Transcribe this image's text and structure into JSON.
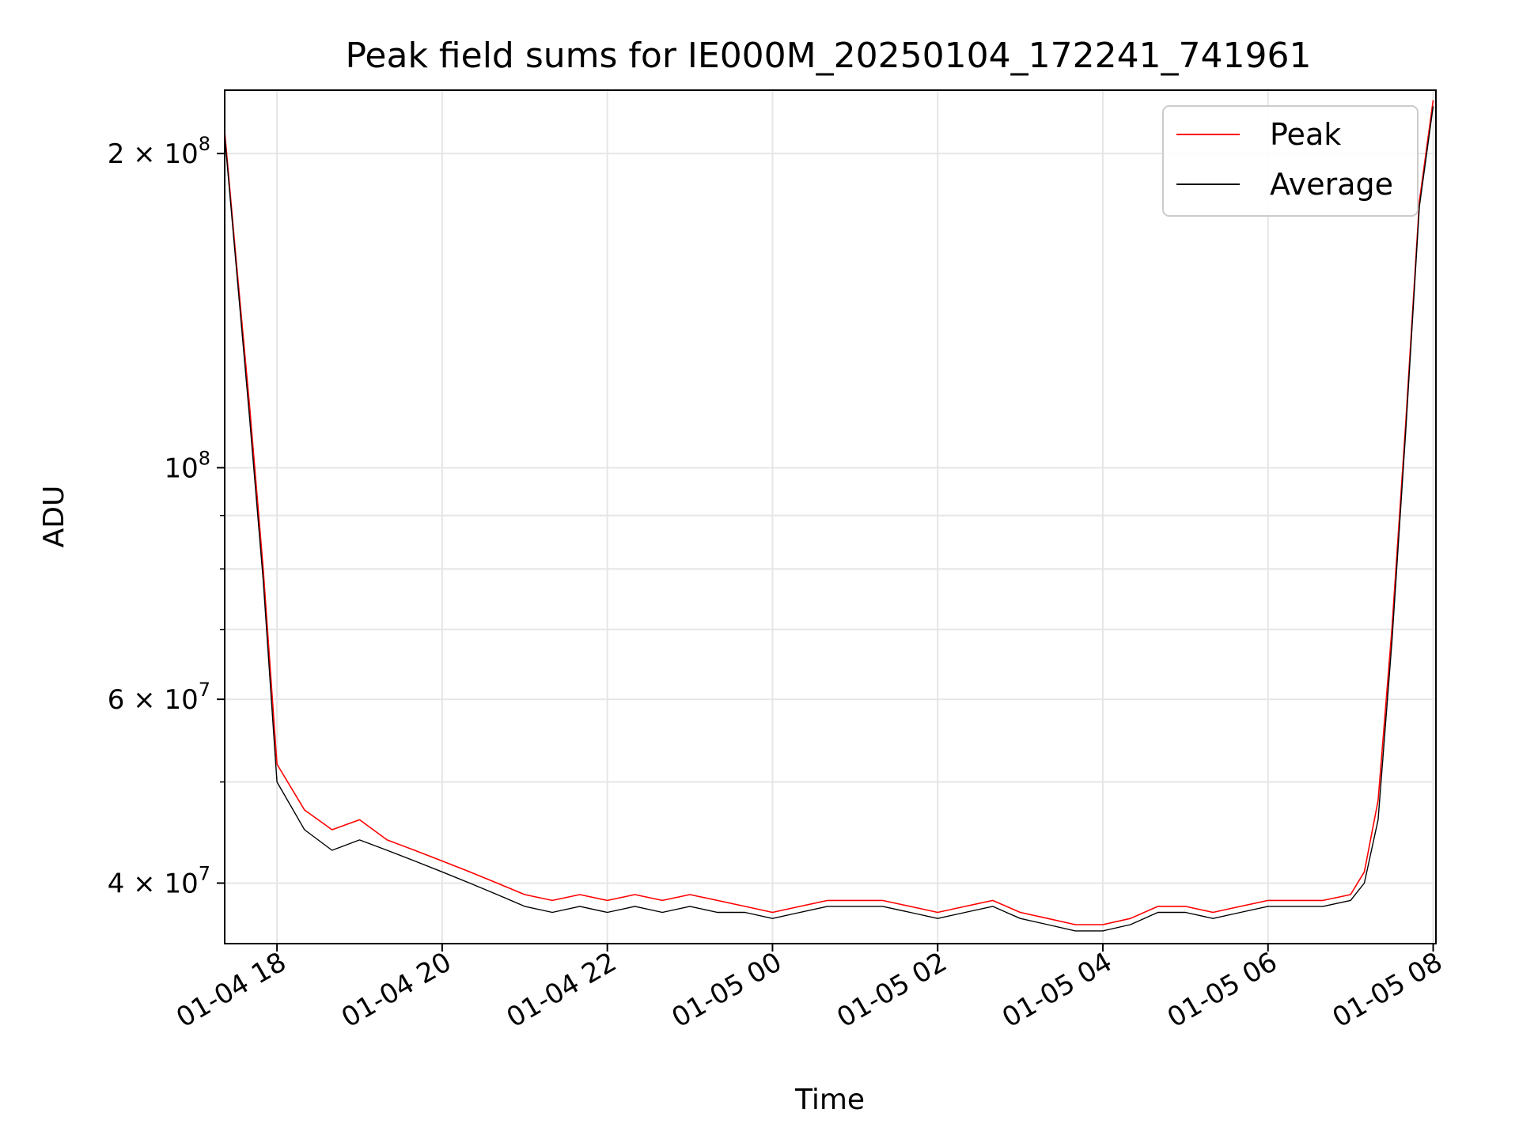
{
  "chart_data": {
    "type": "line",
    "title": "Peak field sums for IE000M_20250104_172241_741961",
    "xlabel": "Time",
    "ylabel": "ADU",
    "y_scale": "log",
    "ylim": [
      35000000,
      230000000
    ],
    "xlim": [
      "2025-01-04 17:22",
      "2025-01-05 08:02"
    ],
    "grid": true,
    "legend_position": "top-right",
    "x_ticks": [
      {
        "x": "2025-01-04 18:00",
        "label": "01-04 18"
      },
      {
        "x": "2025-01-04 20:00",
        "label": "01-04 20"
      },
      {
        "x": "2025-01-04 22:00",
        "label": "01-04 22"
      },
      {
        "x": "2025-01-05 00:00",
        "label": "01-05 00"
      },
      {
        "x": "2025-01-05 02:00",
        "label": "01-05 02"
      },
      {
        "x": "2025-01-05 04:00",
        "label": "01-05 04"
      },
      {
        "x": "2025-01-05 06:00",
        "label": "01-05 06"
      },
      {
        "x": "2025-01-05 08:00",
        "label": "01-05 08"
      }
    ],
    "y_ticks_major": [
      {
        "y": 40000000,
        "base": "4 × 10",
        "exp": "7"
      },
      {
        "y": 60000000,
        "base": "6 × 10",
        "exp": "7"
      },
      {
        "y": 100000000,
        "base": "10",
        "exp": "8"
      },
      {
        "y": 200000000,
        "base": "2 × 10",
        "exp": "8"
      }
    ],
    "y_ticks_minor": [
      50000000,
      70000000,
      80000000,
      90000000
    ],
    "series": [
      {
        "name": "Peak",
        "color": "#ff0000",
        "x": [
          "2025-01-04 17:22",
          "2025-01-04 17:30",
          "2025-01-04 17:40",
          "2025-01-04 17:50",
          "2025-01-04 18:00",
          "2025-01-04 18:20",
          "2025-01-04 18:40",
          "2025-01-04 19:00",
          "2025-01-04 19:20",
          "2025-01-04 19:40",
          "2025-01-04 20:00",
          "2025-01-04 20:20",
          "2025-01-04 20:40",
          "2025-01-04 21:00",
          "2025-01-04 21:20",
          "2025-01-04 21:40",
          "2025-01-04 22:00",
          "2025-01-04 22:20",
          "2025-01-04 22:40",
          "2025-01-04 23:00",
          "2025-01-04 23:20",
          "2025-01-04 23:40",
          "2025-01-05 00:00",
          "2025-01-05 00:20",
          "2025-01-05 00:40",
          "2025-01-05 01:00",
          "2025-01-05 01:20",
          "2025-01-05 01:40",
          "2025-01-05 02:00",
          "2025-01-05 02:20",
          "2025-01-05 02:40",
          "2025-01-05 03:00",
          "2025-01-05 03:20",
          "2025-01-05 03:40",
          "2025-01-05 04:00",
          "2025-01-05 04:20",
          "2025-01-05 04:40",
          "2025-01-05 05:00",
          "2025-01-05 05:20",
          "2025-01-05 05:40",
          "2025-01-05 06:00",
          "2025-01-05 06:20",
          "2025-01-05 06:40",
          "2025-01-05 07:00",
          "2025-01-05 07:10",
          "2025-01-05 07:20",
          "2025-01-05 07:30",
          "2025-01-05 07:40",
          "2025-01-05 07:50",
          "2025-01-05 08:00"
        ],
        "values": [
          210000000,
          160000000,
          115000000,
          80000000,
          52000000,
          47000000,
          45000000,
          46000000,
          44000000,
          43000000,
          42000000,
          41000000,
          40000000,
          39000000,
          38500000,
          39000000,
          38500000,
          39000000,
          38500000,
          39000000,
          38500000,
          38000000,
          37500000,
          38000000,
          38500000,
          38500000,
          38500000,
          38000000,
          37500000,
          38000000,
          38500000,
          37500000,
          37000000,
          36500000,
          36500000,
          37000000,
          38000000,
          38000000,
          37500000,
          38000000,
          38500000,
          38500000,
          38500000,
          39000000,
          41000000,
          48000000,
          70000000,
          110000000,
          180000000,
          225000000
        ]
      },
      {
        "name": "Average",
        "color": "#000000",
        "x": [
          "2025-01-04 17:22",
          "2025-01-04 17:30",
          "2025-01-04 17:40",
          "2025-01-04 17:50",
          "2025-01-04 18:00",
          "2025-01-04 18:20",
          "2025-01-04 18:40",
          "2025-01-04 19:00",
          "2025-01-04 19:20",
          "2025-01-04 19:40",
          "2025-01-04 20:00",
          "2025-01-04 20:20",
          "2025-01-04 20:40",
          "2025-01-04 21:00",
          "2025-01-04 21:20",
          "2025-01-04 21:40",
          "2025-01-04 22:00",
          "2025-01-04 22:20",
          "2025-01-04 22:40",
          "2025-01-04 23:00",
          "2025-01-04 23:20",
          "2025-01-04 23:40",
          "2025-01-05 00:00",
          "2025-01-05 00:20",
          "2025-01-05 00:40",
          "2025-01-05 01:00",
          "2025-01-05 01:20",
          "2025-01-05 01:40",
          "2025-01-05 02:00",
          "2025-01-05 02:20",
          "2025-01-05 02:40",
          "2025-01-05 03:00",
          "2025-01-05 03:20",
          "2025-01-05 03:40",
          "2025-01-05 04:00",
          "2025-01-05 04:20",
          "2025-01-05 04:40",
          "2025-01-05 05:00",
          "2025-01-05 05:20",
          "2025-01-05 05:40",
          "2025-01-05 06:00",
          "2025-01-05 06:20",
          "2025-01-05 06:40",
          "2025-01-05 07:00",
          "2025-01-05 07:10",
          "2025-01-05 07:20",
          "2025-01-05 07:30",
          "2025-01-05 07:40",
          "2025-01-05 07:50",
          "2025-01-05 08:00"
        ],
        "values": [
          208000000,
          158000000,
          112000000,
          78000000,
          50000000,
          45000000,
          43000000,
          44000000,
          43000000,
          42000000,
          41000000,
          40000000,
          39000000,
          38000000,
          37500000,
          38000000,
          37500000,
          38000000,
          37500000,
          38000000,
          37500000,
          37500000,
          37000000,
          37500000,
          38000000,
          38000000,
          38000000,
          37500000,
          37000000,
          37500000,
          38000000,
          37000000,
          36500000,
          36000000,
          36000000,
          36500000,
          37500000,
          37500000,
          37000000,
          37500000,
          38000000,
          38000000,
          38000000,
          38500000,
          40000000,
          46000000,
          68000000,
          108000000,
          178000000,
          222000000
        ]
      }
    ]
  }
}
